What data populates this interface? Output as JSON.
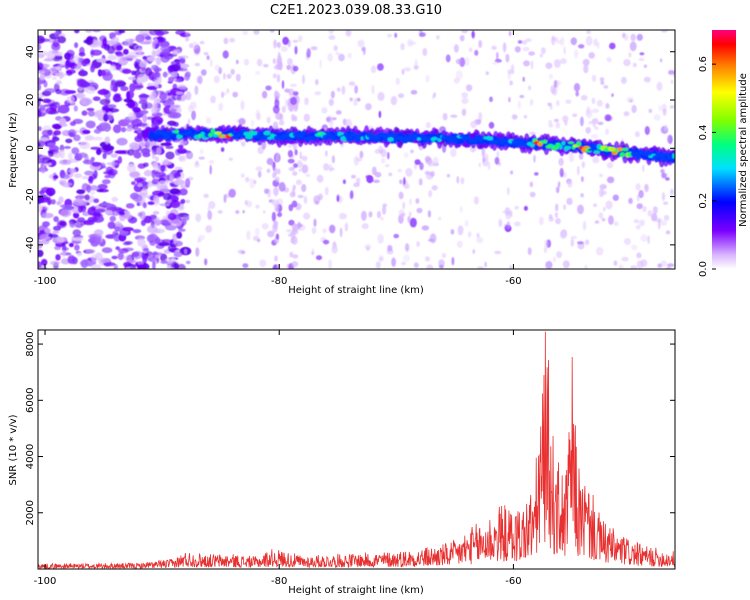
{
  "figure": {
    "title": "C2E1.2023.039.08.33.G10"
  },
  "colors": {
    "snr_line": "#e83030",
    "axis": "#000000"
  },
  "chart_data": [
    {
      "type": "heatmap",
      "title": "C2E1.2023.039.08.33.G10",
      "xlabel": "Height of straight line (km)",
      "ylabel": "Frequency (Hz)",
      "xlim": [
        -100.6,
        -46.2
      ],
      "ylim": [
        -50,
        49
      ],
      "xticks": [
        -100,
        -80,
        -60
      ],
      "yticks": [
        -40,
        -20,
        0,
        20,
        40
      ],
      "trace": {
        "description_points_height_km": [
          -91,
          -85,
          -80,
          -75,
          -70,
          -65,
          -60,
          -55,
          -50,
          -46.2
        ],
        "description_points_freq_hz": [
          5.5,
          6,
          5,
          5,
          4.5,
          4,
          2.5,
          1,
          -2,
          -4
        ],
        "peak_heights_km": [
          -85,
          -57.5,
          -54.5,
          -51
        ]
      },
      "colorbar": {
        "label": "Normalized spectral amplitude",
        "range": [
          0,
          0.7
        ],
        "ticks": [
          0.0,
          0.2,
          0.4,
          0.6
        ],
        "tick_labels": [
          "0.0",
          "0.2",
          "0.4",
          "0.6"
        ]
      }
    },
    {
      "type": "line",
      "xlabel": "Height of straight line (km)",
      "ylabel": "SNR (10 * v/v)",
      "xlim": [
        -100.6,
        -46.2
      ],
      "ylim": [
        0,
        8500
      ],
      "xticks": [
        -100,
        -80,
        -60
      ],
      "yticks": [
        2000,
        4000,
        6000,
        8000
      ],
      "envelope": {
        "x": [
          -100.6,
          -92,
          -89,
          -88,
          -86,
          -84,
          -82,
          -80.5,
          -78,
          -74,
          -70,
          -67,
          -65,
          -64,
          -62.5,
          -61,
          -60,
          -59,
          -58.2,
          -57.7,
          -57.2,
          -56.5,
          -55.5,
          -55,
          -54.5,
          -53.5,
          -52.5,
          -51,
          -49,
          -47,
          -46.2
        ],
        "y": [
          180,
          200,
          350,
          600,
          500,
          500,
          420,
          700,
          450,
          520,
          600,
          750,
          950,
          1300,
          1700,
          2200,
          2000,
          2300,
          3000,
          5500,
          8400,
          3800,
          3200,
          7200,
          3500,
          2800,
          1700,
          1200,
          800,
          650,
          600
        ]
      }
    }
  ]
}
